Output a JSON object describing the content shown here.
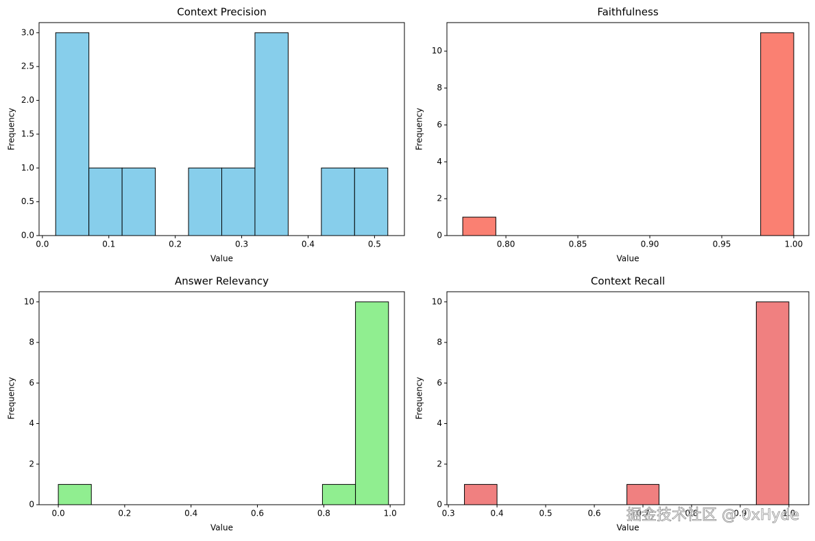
{
  "chart_data": [
    {
      "type": "histogram",
      "title": "Context Precision",
      "x_label": "Value",
      "y_label": "Frequency",
      "color": "#87ceeb",
      "bins": [
        0.02,
        0.07,
        0.12,
        0.17,
        0.22,
        0.27,
        0.32,
        0.37,
        0.42,
        0.47,
        0.52
      ],
      "values": [
        3,
        1,
        1,
        0,
        1,
        1,
        3,
        0,
        1,
        1
      ],
      "xlim": [
        -0.005,
        0.545
      ],
      "ylim": [
        0,
        3.15
      ],
      "xticks": [
        {
          "value": 0,
          "label": "0.0"
        },
        0.1,
        0.2,
        0.3,
        0.4,
        0.5
      ],
      "yticks": [
        {
          "value": 0,
          "label": "0.0"
        },
        0.5,
        {
          "value": 1,
          "label": "1.0"
        },
        1.5,
        {
          "value": 2,
          "label": "2.0"
        },
        2.5,
        {
          "value": 3,
          "label": "3.0"
        }
      ]
    },
    {
      "type": "histogram",
      "title": "Faithfulness",
      "x_label": "Value",
      "y_label": "Frequency",
      "color": "#fa8072",
      "bins": [
        0.77,
        0.793,
        0.816,
        0.839,
        0.862,
        0.885,
        0.908,
        0.931,
        0.954,
        0.977,
        1.0
      ],
      "values": [
        1,
        0,
        0,
        0,
        0,
        0,
        0,
        0,
        0,
        11
      ],
      "xlim": [
        0.759,
        1.0105
      ],
      "ylim": [
        0,
        11.55
      ],
      "xticks": [
        {
          "value": 0.8,
          "label": "0.80"
        },
        0.85,
        {
          "value": 0.9,
          "label": "0.90"
        },
        0.95,
        {
          "value": 1,
          "label": "1.00"
        }
      ],
      "yticks": [
        0,
        2,
        4,
        6,
        8,
        10
      ]
    },
    {
      "type": "histogram",
      "title": "Answer Relevancy",
      "x_label": "Value",
      "y_label": "Frequency",
      "color": "#90ee90",
      "bins": [
        0,
        0.0995,
        0.199,
        0.2985,
        0.398,
        0.4975,
        0.597,
        0.6965,
        0.796,
        0.8955,
        0.995
      ],
      "values": [
        1,
        0,
        0,
        0,
        0,
        0,
        0,
        0,
        1,
        10
      ],
      "xlim": [
        -0.058,
        1.043
      ],
      "ylim": [
        0,
        10.5
      ],
      "xticks": [
        {
          "value": 0,
          "label": "0.0"
        },
        0.2,
        0.4,
        0.6,
        0.8,
        {
          "value": 1,
          "label": "1.0"
        }
      ],
      "yticks": [
        0,
        2,
        4,
        6,
        8,
        10
      ]
    },
    {
      "type": "histogram",
      "title": "Context Recall",
      "x_label": "Value",
      "y_label": "Frequency",
      "color": "#f08080",
      "bins": [
        0.333,
        0.4,
        0.467,
        0.533,
        0.6,
        0.667,
        0.733,
        0.8,
        0.867,
        0.933,
        1.0
      ],
      "values": [
        1,
        0,
        0,
        0,
        0,
        1,
        0,
        0,
        0,
        10
      ],
      "xlim": [
        0.297,
        1.041
      ],
      "ylim": [
        0,
        10.5
      ],
      "xticks": [
        0.3,
        0.4,
        0.5,
        0.6,
        0.7,
        0.8,
        0.9,
        {
          "value": 1,
          "label": "1.0"
        }
      ],
      "yticks": [
        0,
        2,
        4,
        6,
        8,
        10
      ]
    }
  ],
  "watermark": "掘金技术社区 @ 0xHyde"
}
